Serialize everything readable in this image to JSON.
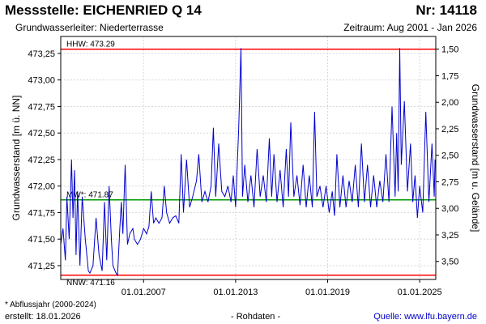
{
  "header": {
    "title": "Messstelle: EICHENRIED Q 14",
    "number": "Nr: 14118",
    "aquifer": "Grundwasserleiter:   Niederterrasse",
    "period": "Zeitraum: Aug 2001 - Jan 2026"
  },
  "footer": {
    "footnote": "* Abflussjahr (2000-2024)",
    "created": "erstellt:  18.01.2026",
    "data_type": "- Rohdaten -",
    "source": "Quelle:  www.lfu.bayern.de"
  },
  "chart_data": {
    "type": "line",
    "ylabel": "Grundwasserstand [m ü. NN]",
    "y2label": "Grundwasserstand [m u. Gelände]",
    "ylim": [
      471.12,
      473.41
    ],
    "xlim": [
      2001.6,
      2026.05
    ],
    "y2_offset": 474.79,
    "y_ticks": [
      "471,25",
      "471,50",
      "471,75",
      "472,00",
      "472,25",
      "472,50",
      "472,75",
      "473,00",
      "473,25"
    ],
    "y2_ticks": [
      "1,50",
      "1,75",
      "2,00",
      "2,25",
      "2,50",
      "2,75",
      "3,00",
      "3,25",
      "3,50"
    ],
    "x_ticks": [
      "01.01.2007",
      "01.01.2013",
      "01.01.2019",
      "01.01.2025"
    ],
    "x_tick_years": [
      2007,
      2013,
      2019,
      2025
    ],
    "grid": true,
    "reference_lines": [
      {
        "label": "HHW: 473.29",
        "value": 473.29,
        "color": "#ff0000"
      },
      {
        "label": "MW*: 471.87",
        "value": 471.87,
        "color": "#009900"
      },
      {
        "label": "NNW: 471.16",
        "value": 471.16,
        "color": "#ff0000"
      }
    ],
    "series_color": "#0000cc",
    "series": [
      {
        "x": [
          2001.6,
          2001.75,
          2001.9,
          2002.0,
          2002.15,
          2002.3,
          2002.4,
          2002.5,
          2002.6,
          2002.7,
          2002.85,
          2003.0,
          2003.2,
          2003.4,
          2003.5,
          2003.7,
          2003.9,
          2004.1,
          2004.3,
          2004.45,
          2004.6,
          2004.75,
          2004.9,
          2005.0,
          2005.2,
          2005.3,
          2005.45,
          2005.55,
          2005.65,
          2005.8,
          2005.95,
          2006.1,
          2006.3,
          2006.4,
          2006.6,
          2006.8,
          2007.0,
          2007.2,
          2007.35,
          2007.5,
          2007.65,
          2007.8,
          2008.0,
          2008.2,
          2008.35,
          2008.5,
          2008.7,
          2008.9,
          2009.1,
          2009.3,
          2009.45,
          2009.6,
          2009.8,
          2010.0,
          2010.2,
          2010.45,
          2010.6,
          2010.8,
          2011.0,
          2011.2,
          2011.4,
          2011.55,
          2011.7,
          2011.9,
          2012.1,
          2012.3,
          2012.5,
          2012.7,
          2012.85,
          2013.0,
          2013.2,
          2013.35,
          2013.45,
          2013.6,
          2013.8,
          2014.0,
          2014.2,
          2014.4,
          2014.6,
          2014.8,
          2015.0,
          2015.2,
          2015.35,
          2015.5,
          2015.7,
          2015.9,
          2016.1,
          2016.3,
          2016.45,
          2016.6,
          2016.8,
          2017.0,
          2017.2,
          2017.4,
          2017.6,
          2017.8,
          2018.0,
          2018.15,
          2018.3,
          2018.5,
          2018.7,
          2018.9,
          2019.1,
          2019.3,
          2019.45,
          2019.6,
          2019.8,
          2020.0,
          2020.2,
          2020.4,
          2020.6,
          2020.8,
          2021.0,
          2021.2,
          2021.4,
          2021.6,
          2021.8,
          2022.0,
          2022.2,
          2022.4,
          2022.6,
          2022.8,
          2023.0,
          2023.2,
          2023.4,
          2023.5,
          2023.6,
          2023.7,
          2023.8,
          2024.0,
          2024.2,
          2024.4,
          2024.55,
          2024.7,
          2024.85,
          2025.0,
          2025.2,
          2025.4,
          2025.6,
          2025.8,
          2025.95,
          2026.0
        ],
        "y": [
          471.45,
          471.6,
          471.3,
          471.9,
          471.5,
          472.25,
          471.7,
          472.15,
          471.35,
          471.95,
          471.25,
          471.9,
          471.5,
          471.2,
          471.18,
          471.25,
          471.7,
          471.35,
          471.2,
          471.85,
          471.3,
          472.0,
          471.5,
          471.25,
          471.18,
          471.16,
          471.6,
          471.85,
          471.55,
          472.2,
          471.45,
          471.55,
          471.6,
          471.5,
          471.45,
          471.5,
          471.6,
          471.55,
          471.62,
          471.95,
          471.65,
          471.7,
          471.65,
          471.7,
          472.0,
          471.75,
          471.65,
          471.7,
          471.72,
          471.65,
          472.3,
          471.75,
          472.25,
          471.8,
          471.9,
          472.05,
          472.3,
          471.85,
          471.95,
          471.85,
          472.0,
          472.55,
          471.9,
          472.4,
          471.95,
          471.9,
          472.0,
          471.85,
          472.1,
          471.8,
          472.55,
          473.3,
          471.9,
          472.2,
          471.85,
          472.1,
          471.8,
          472.35,
          471.9,
          472.1,
          471.85,
          472.45,
          471.9,
          472.3,
          471.85,
          472.15,
          471.8,
          472.35,
          471.9,
          472.6,
          471.9,
          472.1,
          471.82,
          472.2,
          471.8,
          472.1,
          471.8,
          472.7,
          471.9,
          472.0,
          471.8,
          472.0,
          471.75,
          471.95,
          471.72,
          472.3,
          471.8,
          472.1,
          471.8,
          472.05,
          471.85,
          472.2,
          471.8,
          472.4,
          471.85,
          472.2,
          471.8,
          472.1,
          471.8,
          472.05,
          471.85,
          472.3,
          471.85,
          472.75,
          471.9,
          472.5,
          471.95,
          473.3,
          472.2,
          472.8,
          471.95,
          472.4,
          471.85,
          472.1,
          471.7,
          472.0,
          471.75,
          472.7,
          471.85,
          472.4,
          471.9,
          472.25
        ]
      }
    ]
  }
}
